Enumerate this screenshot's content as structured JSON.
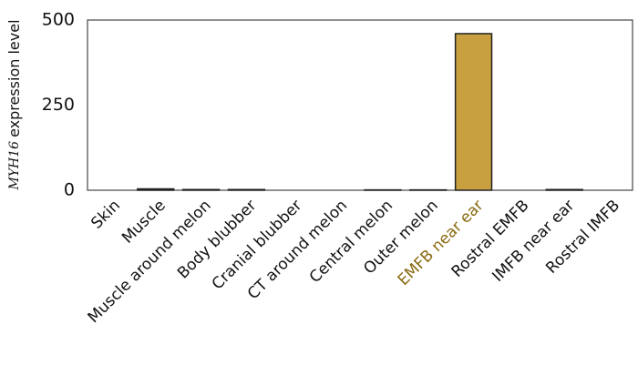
{
  "chart_data": {
    "type": "bar",
    "ylabel_italic": "MYH16",
    "ylabel": "expression level",
    "categories": [
      "Skin",
      "Muscle",
      "Muscle around melon",
      "Body blubber",
      "Cranial blubber",
      "CT around melon",
      "Central melon",
      "Outer melon",
      "EMFB near ear",
      "Rostral EMFB",
      "IMFB near ear",
      "Rostral IMFB"
    ],
    "category_colors": [
      "#111111",
      "#111111",
      "#111111",
      "#111111",
      "#111111",
      "#111111",
      "#111111",
      "#111111",
      "#8a6a12",
      "#111111",
      "#111111",
      "#111111"
    ],
    "values": [
      0,
      4,
      2,
      2,
      0,
      0,
      1,
      1,
      460,
      0,
      2,
      0
    ],
    "color": "#c9a040",
    "edge_color": "#222222",
    "ylim": [
      0,
      500
    ],
    "yticks": [
      0,
      250,
      500
    ],
    "grid": false
  }
}
